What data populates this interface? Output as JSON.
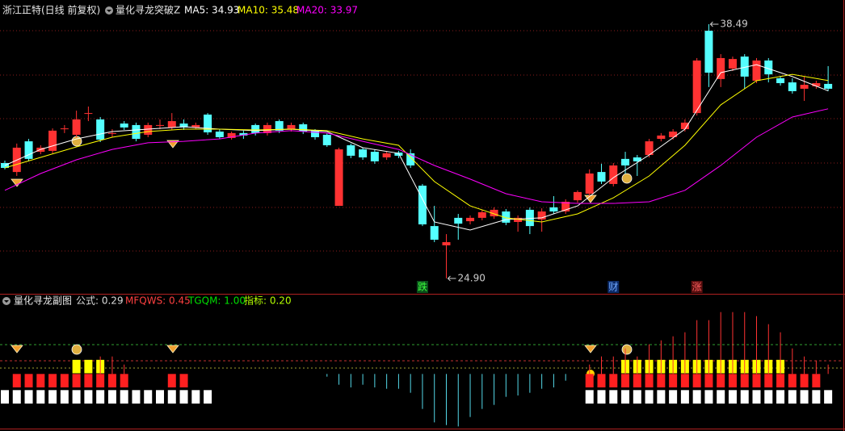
{
  "chart_data": [
    {
      "type": "candlestick",
      "subtitle": "浙江正特(日线 前复权)",
      "title": "量化寻龙突破Z",
      "ylim": [
        24.08,
        39.18
      ],
      "up_color": "#ff3232",
      "down_color": "#54ffff",
      "candles": [
        [
          31.07,
          31.2,
          30.73,
          30.81
        ],
        [
          30.59,
          32.11,
          30.38,
          31.89
        ],
        [
          32.23,
          32.36,
          31.16,
          31.29
        ],
        [
          31.67,
          32.02,
          31.54,
          31.89
        ],
        [
          31.72,
          32.92,
          31.59,
          32.8
        ],
        [
          32.88,
          33.1,
          32.67,
          32.92
        ],
        [
          32.58,
          33.87,
          32.45,
          33.4
        ],
        [
          33.74,
          34.09,
          33.31,
          33.74
        ],
        [
          33.4,
          33.53,
          32.19,
          32.32
        ],
        [
          32.67,
          32.88,
          32.45,
          32.67
        ],
        [
          33.18,
          33.31,
          32.84,
          32.97
        ],
        [
          33.1,
          33.23,
          32.23,
          32.36
        ],
        [
          32.58,
          33.23,
          32.45,
          33.1
        ],
        [
          33.1,
          33.4,
          32.88,
          33.1
        ],
        [
          32.97,
          33.74,
          32.84,
          33.31
        ],
        [
          33.18,
          33.4,
          32.84,
          32.97
        ],
        [
          32.97,
          33.23,
          32.88,
          33.1
        ],
        [
          33.66,
          33.74,
          32.58,
          32.71
        ],
        [
          32.75,
          32.88,
          32.36,
          32.45
        ],
        [
          32.41,
          32.75,
          32.32,
          32.67
        ],
        [
          32.67,
          32.8,
          32.36,
          32.54
        ],
        [
          33.1,
          33.18,
          32.54,
          32.67
        ],
        [
          32.67,
          33.23,
          32.54,
          33.1
        ],
        [
          33.31,
          33.4,
          32.67,
          32.8
        ],
        [
          32.88,
          33.23,
          32.75,
          33.1
        ],
        [
          33.14,
          33.23,
          32.62,
          32.75
        ],
        [
          32.8,
          32.88,
          32.32,
          32.45
        ],
        [
          32.58,
          32.67,
          31.93,
          32.02
        ],
        [
          28.78,
          31.89,
          28.78,
          31.8
        ],
        [
          32.02,
          32.11,
          31.33,
          31.46
        ],
        [
          31.8,
          31.89,
          31.24,
          31.37
        ],
        [
          31.67,
          31.8,
          31.03,
          31.16
        ],
        [
          31.37,
          31.67,
          31.24,
          31.59
        ],
        [
          31.63,
          31.72,
          31.33,
          31.46
        ],
        [
          31.59,
          31.8,
          30.81,
          30.94
        ],
        [
          29.86,
          29.95,
          27.7,
          27.79
        ],
        [
          27.7,
          28.78,
          26.84,
          26.97
        ],
        [
          26.67,
          27.27,
          24.9,
          26.84
        ],
        [
          28.14,
          28.35,
          26.97,
          27.83
        ],
        [
          27.96,
          28.27,
          27.79,
          28.14
        ],
        [
          28.14,
          28.57,
          28.01,
          28.44
        ],
        [
          28.22,
          28.7,
          28.09,
          28.57
        ],
        [
          28.48,
          28.61,
          27.75,
          27.88
        ],
        [
          27.92,
          28.27,
          27.4,
          28.14
        ],
        [
          28.57,
          28.7,
          27.27,
          27.7
        ],
        [
          28.05,
          28.65,
          27.4,
          28.48
        ],
        [
          28.7,
          29.3,
          28.35,
          28.48
        ],
        [
          28.48,
          29.13,
          28.35,
          29.0
        ],
        [
          29.08,
          29.61,
          28.95,
          29.52
        ],
        [
          29.43,
          30.73,
          29.3,
          30.51
        ],
        [
          30.59,
          31.03,
          29.95,
          30.08
        ],
        [
          29.95,
          31.07,
          29.82,
          30.94
        ],
        [
          31.29,
          31.67,
          30.51,
          30.94
        ],
        [
          31.37,
          31.5,
          30.38,
          31.16
        ],
        [
          31.5,
          32.36,
          31.37,
          32.23
        ],
        [
          32.36,
          32.67,
          32.23,
          32.54
        ],
        [
          32.45,
          32.88,
          32.32,
          32.75
        ],
        [
          32.88,
          33.4,
          32.75,
          33.23
        ],
        [
          33.74,
          36.68,
          33.61,
          36.55
        ],
        [
          38.14,
          38.49,
          35.13,
          35.9
        ],
        [
          35.56,
          36.89,
          35.13,
          36.68
        ],
        [
          36.12,
          36.76,
          35.99,
          36.63
        ],
        [
          36.76,
          36.89,
          35.04,
          35.69
        ],
        [
          35.47,
          36.68,
          35.34,
          36.55
        ],
        [
          36.55,
          36.68,
          35.38,
          35.81
        ],
        [
          35.6,
          35.73,
          35.21,
          35.34
        ],
        [
          35.38,
          35.6,
          34.78,
          34.91
        ],
        [
          35.04,
          35.69,
          34.39,
          35.25
        ],
        [
          35.17,
          35.47,
          35.04,
          35.34
        ],
        [
          35.3,
          36.25,
          34.91,
          35.04
        ]
      ],
      "series": [
        {
          "name": "MA5: 34.93",
          "color": "#ffffff",
          "x": [
            0,
            3,
            6,
            9,
            12,
            15,
            18,
            21,
            24,
            27,
            30,
            33,
            36,
            39,
            42,
            45,
            48,
            51,
            54,
            57,
            60,
            63,
            66,
            69
          ],
          "values": [
            30.94,
            31.8,
            32.36,
            32.75,
            32.88,
            33.01,
            32.88,
            32.8,
            32.88,
            32.75,
            31.89,
            31.59,
            27.92,
            27.49,
            28.05,
            28.14,
            28.78,
            30.29,
            31.5,
            32.88,
            35.9,
            36.33,
            35.69,
            34.93
          ]
        },
        {
          "name": "MA10: 35.48",
          "color": "#ffff00",
          "x": [
            0,
            3,
            6,
            9,
            12,
            15,
            18,
            21,
            24,
            27,
            30,
            33,
            36,
            39,
            42,
            45,
            48,
            51,
            54,
            57,
            60,
            63,
            66,
            69
          ],
          "values": [
            30.81,
            31.37,
            31.93,
            32.45,
            32.75,
            32.88,
            32.88,
            32.84,
            32.88,
            32.8,
            32.36,
            32.02,
            30.08,
            28.78,
            28.14,
            27.92,
            28.35,
            29.21,
            30.38,
            32.02,
            34.18,
            35.47,
            35.81,
            35.48
          ]
        },
        {
          "name": "MA20: 33.97",
          "color": "#ff00ff",
          "x": [
            0,
            3,
            6,
            9,
            12,
            15,
            18,
            21,
            24,
            27,
            30,
            33,
            36,
            39,
            42,
            45,
            48,
            51,
            54,
            57,
            60,
            63,
            66,
            69
          ],
          "values": [
            29.61,
            30.51,
            31.24,
            31.8,
            32.15,
            32.23,
            32.36,
            32.67,
            32.8,
            32.67,
            32.23,
            31.8,
            30.94,
            30.21,
            29.43,
            29.0,
            28.91,
            28.91,
            29.0,
            29.61,
            30.94,
            32.45,
            33.53,
            33.97
          ]
        }
      ],
      "annotations": [
        {
          "text": "38.49",
          "value": 38.49,
          "index": 59
        },
        {
          "text": "24.90",
          "value": 24.9,
          "index": 37
        }
      ],
      "markers": [
        {
          "text": "跌",
          "index": 35,
          "color": "#3cff3c",
          "bg": "#0b4f1b"
        },
        {
          "text": "财",
          "index": 51,
          "color": "#6fa8ff",
          "bg": "#0c2a66"
        },
        {
          "text": "涨",
          "index": 58,
          "color": "#ff6060",
          "bg": "#5a0f0f"
        }
      ]
    },
    {
      "type": "bar",
      "title": "量化寻龙副图",
      "readouts": [
        {
          "text": "公式: 0.29",
          "color": "#dcdcdc"
        },
        {
          "text": "MFQWS: 0.45",
          "color": "#ff4040"
        },
        {
          "text": "TGQM: 1.00",
          "color": "#00e000"
        },
        {
          "text": "指标: 0.20",
          "color": "#b4ff00"
        }
      ],
      "ylim": [
        -4,
        5
      ],
      "series": [
        {
          "style": "block",
          "color": "#ffffff",
          "values": [
            1,
            1,
            1,
            1,
            1,
            1,
            1,
            1,
            1,
            1,
            1,
            1,
            1,
            1,
            1,
            1,
            1,
            1,
            null,
            null,
            null,
            null,
            null,
            null,
            null,
            null,
            null,
            null,
            null,
            null,
            null,
            null,
            null,
            null,
            null,
            null,
            null,
            null,
            null,
            null,
            null,
            null,
            null,
            null,
            null,
            null,
            null,
            null,
            null,
            1,
            1,
            1,
            1,
            1,
            1,
            1,
            1,
            1,
            1,
            1,
            1,
            1,
            1,
            1,
            1,
            1,
            1,
            1,
            1,
            1
          ]
        },
        {
          "style": "block",
          "color": "#ff2020",
          "values": [
            null,
            1,
            1,
            1,
            1,
            1,
            1,
            1,
            1,
            1,
            1,
            null,
            null,
            null,
            1,
            1,
            null,
            null,
            null,
            null,
            null,
            null,
            null,
            null,
            null,
            null,
            null,
            null,
            null,
            null,
            null,
            null,
            null,
            null,
            null,
            null,
            null,
            null,
            null,
            null,
            null,
            null,
            null,
            null,
            null,
            null,
            null,
            null,
            null,
            1,
            1,
            1,
            1,
            1,
            1,
            1,
            1,
            1,
            1,
            1,
            1,
            1,
            1,
            1,
            1,
            1,
            1,
            1,
            1,
            null
          ]
        },
        {
          "style": "block",
          "color": "#ffff00",
          "values": [
            null,
            null,
            null,
            null,
            null,
            null,
            1,
            1,
            1,
            null,
            null,
            null,
            null,
            null,
            null,
            null,
            null,
            null,
            null,
            null,
            null,
            null,
            null,
            null,
            null,
            null,
            null,
            null,
            null,
            null,
            null,
            null,
            null,
            null,
            null,
            null,
            null,
            null,
            null,
            null,
            null,
            null,
            null,
            null,
            null,
            null,
            null,
            null,
            null,
            null,
            null,
            null,
            1,
            1,
            1,
            1,
            1,
            1,
            1,
            1,
            1,
            1,
            1,
            1,
            1,
            1,
            null,
            null,
            null,
            null
          ]
        },
        {
          "style": "line",
          "color": "#54d8e8",
          "values": [
            null,
            null,
            null,
            null,
            null,
            null,
            null,
            null,
            null,
            null,
            null,
            null,
            null,
            null,
            null,
            null,
            null,
            null,
            null,
            null,
            null,
            null,
            null,
            null,
            null,
            null,
            null,
            -0.2,
            -0.8,
            -1.0,
            -0.8,
            -1.0,
            -1.1,
            -1.1,
            -1.4,
            -2.6,
            -3.6,
            -3.8,
            -3.9,
            -3.2,
            -2.6,
            -2.3,
            -1.7,
            -1.6,
            -1.4,
            -1.1,
            -1.0,
            -0.5,
            null,
            null,
            null,
            null,
            null,
            null,
            null,
            null,
            null,
            null,
            null,
            null,
            null,
            null,
            null,
            null,
            null,
            null,
            null,
            null,
            null,
            null
          ]
        },
        {
          "style": "line",
          "color": "#ff3232",
          "values": [
            null,
            null,
            null,
            null,
            null,
            null,
            null,
            null,
            1.3,
            1.3,
            0.7,
            null,
            null,
            null,
            null,
            null,
            null,
            null,
            null,
            null,
            null,
            null,
            null,
            null,
            null,
            null,
            null,
            null,
            null,
            null,
            null,
            null,
            null,
            null,
            null,
            null,
            null,
            null,
            null,
            null,
            null,
            null,
            null,
            null,
            null,
            null,
            null,
            null,
            null,
            0.7,
            1.3,
            1.3,
            1.9,
            1.3,
            2.2,
            2.5,
            2.8,
            3.1,
            4.0,
            4.0,
            4.6,
            4.6,
            4.6,
            4.3,
            3.7,
            3.1,
            1.9,
            1.3,
            1.0,
            0.7
          ]
        }
      ]
    }
  ]
}
